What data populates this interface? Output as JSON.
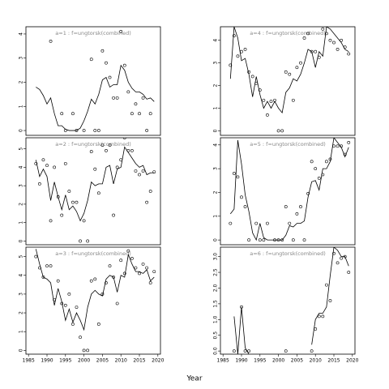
{
  "x_label": "Year",
  "chart_data": [
    {
      "type": "combo",
      "title": "a=1 : f=ungtorsk(combined)",
      "xlim": [
        1984.3,
        2020.7
      ],
      "ylim": [
        -0.2,
        4.3
      ],
      "yticks": [
        0,
        1,
        2,
        3,
        4
      ],
      "points": {
        "x": [
          1991,
          1994,
          1995,
          1997,
          1998,
          2000,
          2002,
          2003,
          2004,
          2005,
          2006,
          2007,
          2008,
          2009,
          2010,
          2011,
          2012,
          2013,
          2014,
          2015,
          2016,
          2017,
          2018
        ],
        "values": [
          3.7,
          0.7,
          0,
          0.7,
          0,
          0,
          2.95,
          0,
          0,
          3.3,
          2.8,
          2.2,
          1.35,
          1.35,
          4.1,
          2.7,
          1.6,
          0.7,
          1.1,
          0.7,
          1.35,
          0,
          0.7
        ]
      },
      "line": {
        "x": [
          1987,
          1988,
          1989,
          1990,
          1991,
          1992,
          1993,
          1994,
          1995,
          1996,
          1997,
          1998,
          1999,
          2000,
          2001,
          2002,
          2003,
          2004,
          2005,
          2006,
          2007,
          2008,
          2009,
          2010,
          2011,
          2012,
          2013,
          2014,
          2015,
          2016,
          2017,
          2018,
          2019
        ],
        "values": [
          1.8,
          1.7,
          1.45,
          1.1,
          1.35,
          0.7,
          0.2,
          0.2,
          0.05,
          0,
          0,
          0,
          0.1,
          0.4,
          0.8,
          1.3,
          1.1,
          1.5,
          2.1,
          2.2,
          1.8,
          1.9,
          1.9,
          2.7,
          2.5,
          2.0,
          1.75,
          1.6,
          1.6,
          1.5,
          1.3,
          1.35,
          1.2
        ]
      }
    },
    {
      "type": "combo",
      "title": "a=2 : f=ungtorsk(combined)",
      "xlim": [
        1984.3,
        2020.7
      ],
      "ylim": [
        -0.2,
        5.6
      ],
      "yticks": [
        0,
        1,
        2,
        3,
        4,
        5
      ],
      "points": {
        "x": [
          1987,
          1988,
          1989,
          1990,
          1991,
          1992,
          1993,
          1994,
          1995,
          1996,
          1997,
          1998,
          1999,
          2000,
          2001,
          2002,
          2003,
          2004,
          2005,
          2006,
          2007,
          2008,
          2009,
          2010,
          2011,
          2012,
          2013,
          2014,
          2015,
          2016,
          2017,
          2018,
          2019
        ],
        "values": [
          4.2,
          3.1,
          4.4,
          4.1,
          1.1,
          4.0,
          2.4,
          1.4,
          4.2,
          2.7,
          2.1,
          2.1,
          0,
          1.1,
          0,
          4.85,
          3.9,
          2.6,
          5.2,
          4.9,
          5.2,
          1.4,
          4.0,
          4.4,
          5.6,
          4.9,
          4.9,
          3.8,
          3.6,
          3.8,
          2.1,
          2.7,
          3.75
        ]
      },
      "line": {
        "x": [
          1987,
          1988,
          1989,
          1990,
          1991,
          1992,
          1993,
          1994,
          1995,
          1996,
          1997,
          1998,
          1999,
          2000,
          2001,
          2002,
          2003,
          2004,
          2005,
          2006,
          2007,
          2008,
          2009,
          2010,
          2011,
          2012,
          2013,
          2014,
          2015,
          2016,
          2017,
          2018,
          2019
        ],
        "values": [
          4.4,
          3.5,
          3.9,
          3.5,
          2.2,
          3.2,
          2.4,
          1.7,
          2.5,
          1.7,
          1.9,
          1.6,
          1.1,
          1.5,
          2.2,
          3.2,
          3.0,
          3.1,
          3.1,
          4.0,
          4.1,
          3.1,
          3.9,
          4.0,
          5.1,
          4.8,
          4.5,
          4.2,
          4.0,
          4.1,
          3.6,
          3.7,
          3.7
        ]
      }
    },
    {
      "type": "combo",
      "title": "a=3 : f=ungtorsk(combined)",
      "xlim": [
        1984.3,
        2020.7
      ],
      "ylim": [
        -0.2,
        5.5
      ],
      "yticks": [
        0,
        1,
        2,
        3,
        4,
        5
      ],
      "xticks": [
        1985,
        1990,
        1995,
        2000,
        2005,
        2010,
        2015,
        2020
      ],
      "points": {
        "x": [
          1987,
          1988,
          1989,
          1990,
          1991,
          1992,
          1993,
          1994,
          1995,
          1996,
          1997,
          1998,
          1999,
          2000,
          2001,
          2002,
          2003,
          2004,
          2005,
          2006,
          2007,
          2008,
          2009,
          2010,
          2011,
          2012,
          2013,
          2014,
          2015,
          2016,
          2017,
          2018,
          2019
        ],
        "values": [
          5.0,
          4.4,
          3.9,
          4.5,
          4.5,
          2.7,
          3.7,
          2.5,
          2.4,
          3.0,
          1.4,
          2.3,
          0.7,
          0,
          0,
          3.7,
          3.8,
          1.4,
          3.0,
          3.6,
          4.5,
          3.9,
          2.5,
          4.8,
          4.1,
          5.3,
          4.9,
          4.4,
          4.1,
          4.6,
          4.4,
          3.6,
          4.2
        ]
      },
      "line": {
        "x": [
          1987,
          1988,
          1989,
          1990,
          1991,
          1992,
          1993,
          1994,
          1995,
          1996,
          1997,
          1998,
          1999,
          2000,
          2001,
          2002,
          2003,
          2004,
          2005,
          2006,
          2007,
          2008,
          2009,
          2010,
          2011,
          2012,
          2013,
          2014,
          2015,
          2016,
          2017,
          2018,
          2019
        ],
        "values": [
          5.4,
          4.6,
          3.9,
          3.8,
          3.6,
          2.4,
          3.3,
          2.6,
          1.6,
          2.2,
          1.5,
          2.0,
          1.6,
          1.1,
          2.3,
          3.0,
          3.2,
          3.0,
          2.9,
          3.8,
          4.0,
          3.9,
          3.1,
          4.0,
          3.9,
          5.1,
          4.6,
          4.2,
          4.2,
          4.1,
          4.3,
          3.7,
          3.9
        ]
      }
    },
    {
      "type": "combo",
      "title": "a=4 : f=ungtorsk(combined)",
      "xlim": [
        1984.3,
        2020.7
      ],
      "ylim": [
        -0.2,
        4.6
      ],
      "yticks": [
        0,
        1,
        2,
        3,
        4
      ],
      "points": {
        "x": [
          1987,
          1988,
          1989,
          1990,
          1991,
          1992,
          1993,
          1994,
          1995,
          1996,
          1997,
          1998,
          1999,
          2000,
          2001,
          2002,
          2003,
          2004,
          2005,
          2006,
          2007,
          2008,
          2009,
          2010,
          2011,
          2012,
          2013,
          2014,
          2015,
          2016,
          2017,
          2018,
          2019
        ],
        "values": [
          2.9,
          4.2,
          3.3,
          3.5,
          3.6,
          2.6,
          2.4,
          2.1,
          1.8,
          1.35,
          0.7,
          1.3,
          1.35,
          0,
          0,
          2.6,
          2.5,
          1.35,
          2.8,
          3.0,
          4.1,
          4.3,
          3.5,
          3.5,
          3.25,
          4.5,
          4.3,
          4.0,
          3.9,
          3.6,
          4.0,
          3.7,
          3.4
        ]
      },
      "line": {
        "x": [
          1987,
          1988,
          1989,
          1990,
          1991,
          1992,
          1993,
          1994,
          1995,
          1996,
          1997,
          1998,
          1999,
          2000,
          2001,
          2002,
          2003,
          2004,
          2005,
          2006,
          2007,
          2008,
          2009,
          2010,
          2011,
          2012,
          2013,
          2014,
          2015,
          2016,
          2017,
          2018,
          2019
        ],
        "values": [
          2.3,
          4.6,
          4.1,
          3.1,
          3.2,
          2.5,
          1.5,
          2.4,
          1.6,
          1.0,
          1.3,
          1.0,
          1.3,
          1.0,
          0.8,
          1.7,
          1.9,
          2.3,
          2.2,
          2.5,
          3.0,
          3.6,
          3.5,
          2.8,
          3.5,
          3.3,
          4.6,
          4.5,
          4.3,
          4.1,
          3.9,
          3.6,
          3.5
        ]
      }
    },
    {
      "type": "combo",
      "title": "a=5 : f=ungtorsk(combined)",
      "xlim": [
        1984.3,
        2020.7
      ],
      "ylim": [
        -0.2,
        4.3
      ],
      "yticks": [
        0,
        1,
        2,
        3,
        4
      ],
      "points": {
        "x": [
          1987,
          1988,
          1989,
          1990,
          1991,
          1992,
          1994,
          1995,
          1996,
          1997,
          1999,
          2000,
          2001,
          2002,
          2003,
          2004,
          2005,
          2006,
          2007,
          2008,
          2009,
          2010,
          2011,
          2012,
          2013,
          2014,
          2015,
          2016,
          2017,
          2018,
          2019
        ],
        "values": [
          0.7,
          2.8,
          2.65,
          1.8,
          1.4,
          0,
          0.7,
          0,
          0,
          0.7,
          0,
          0,
          0,
          1.4,
          0.7,
          0,
          1.1,
          1.4,
          0,
          1.95,
          3.3,
          3.0,
          2.6,
          2.75,
          3.3,
          3.4,
          3.95,
          3.95,
          3.95,
          3.6,
          4.1
        ]
      },
      "line": {
        "x": [
          1987,
          1988,
          1989,
          1990,
          1991,
          1992,
          1993,
          1994,
          1995,
          1996,
          1997,
          1998,
          1999,
          2000,
          2001,
          2002,
          2003,
          2004,
          2005,
          2006,
          2007,
          2008,
          2009,
          2010,
          2011,
          2012,
          2013,
          2014,
          2015,
          2016,
          2017,
          2018,
          2019
        ],
        "values": [
          1.1,
          1.3,
          4.2,
          3.2,
          1.9,
          1.2,
          0.3,
          0,
          0.7,
          0.1,
          0,
          0,
          0,
          0,
          0,
          0.2,
          0.6,
          0.55,
          0.7,
          0.7,
          0.8,
          1.8,
          2.45,
          2.5,
          2.1,
          3.0,
          3.0,
          3.3,
          4.3,
          4.1,
          3.9,
          3.5,
          3.9
        ]
      }
    },
    {
      "type": "combo",
      "title": "a=6 : f=ungtorsk(combined)",
      "xlim": [
        1984.3,
        2020.7
      ],
      "ylim": [
        -0.1,
        3.3
      ],
      "yticks": [
        {
          "value": 0,
          "label": "0.0"
        },
        {
          "value": 0.5,
          "label": "0.5"
        },
        {
          "value": 1,
          "label": "1.0"
        },
        {
          "value": 1.5,
          "label": "1.5"
        },
        {
          "value": 2,
          "label": "2.0"
        },
        {
          "value": 2.5,
          "label": "2.5"
        },
        {
          "value": 3,
          "label": "3.0"
        }
      ],
      "xticks": [
        1985,
        1990,
        1995,
        2000,
        2005,
        2010,
        2015,
        2020
      ],
      "points": {
        "x": [
          1988,
          1990,
          1991,
          1992,
          2002,
          2009,
          2010,
          2011,
          2012,
          2013,
          2014,
          2015,
          2016,
          2017,
          2018,
          2019
        ],
        "values": [
          0,
          1.4,
          0,
          0,
          0,
          0,
          0.7,
          1.1,
          1.1,
          2.1,
          1.6,
          3.1,
          2.8,
          2.95,
          3.0,
          2.5
        ]
      },
      "line": {
        "x": [
          1988,
          1989,
          1990,
          1991,
          1992,
          1993,
          2009,
          2010,
          2011,
          2012,
          2013,
          2014,
          2015,
          2016,
          2017,
          2018,
          2019
        ],
        "values": [
          1.1,
          -0.1,
          1.4,
          0.1,
          -0.1,
          null,
          0.2,
          1.0,
          1.2,
          1.2,
          1.4,
          2.4,
          3.3,
          3.2,
          3.0,
          3.0,
          2.7
        ]
      }
    }
  ]
}
